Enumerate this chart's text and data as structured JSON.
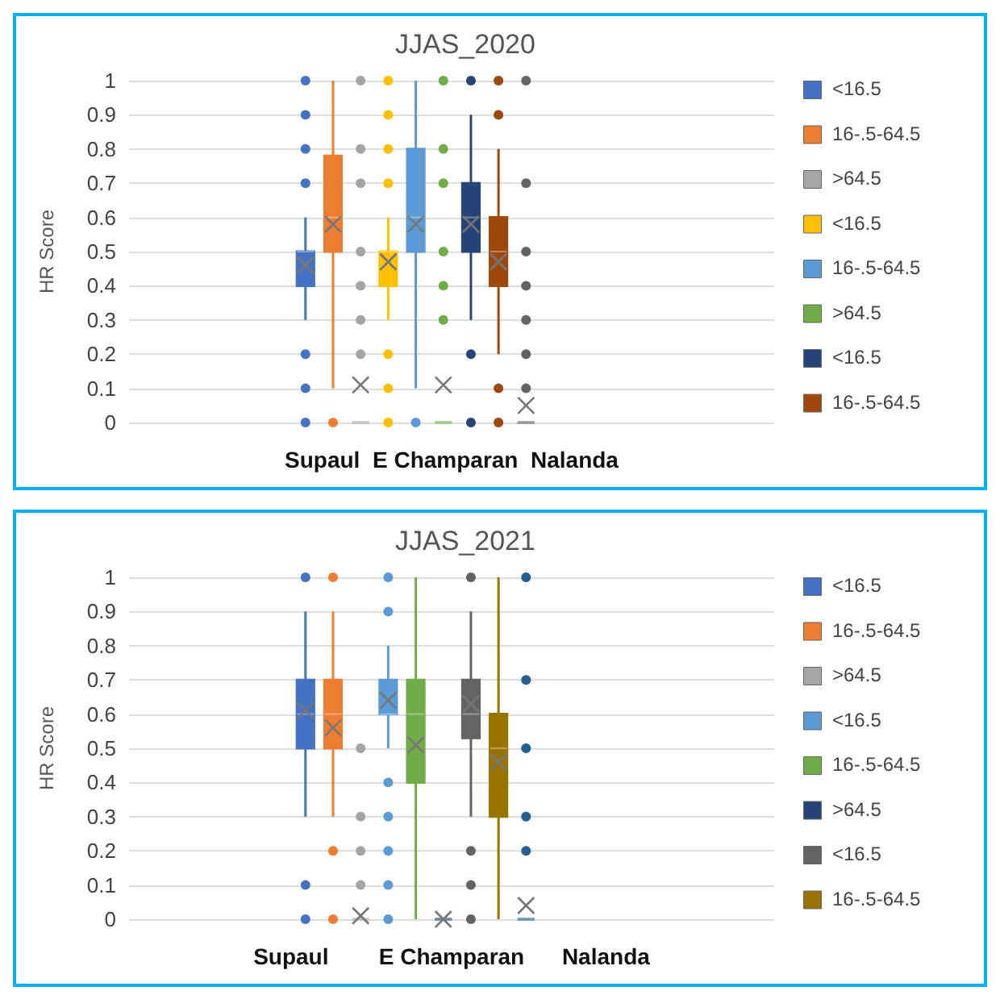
{
  "chart_data": [
    {
      "type": "box",
      "title": "JJAS_2020",
      "ylabel": "HR Score",
      "categories": [
        "Supaul  E Champaran  Nalanda"
      ],
      "ylim": [
        0,
        1
      ],
      "yticks": [
        0,
        0.1,
        0.2,
        0.3,
        0.4,
        0.5,
        0.6,
        0.7,
        0.8,
        0.9,
        1
      ],
      "grid": "y",
      "legend": "right",
      "series": [
        {
          "name": "<16.5",
          "color": "#4472c4",
          "boxes": [
            {
              "low": 0.3,
              "q1": 0.4,
              "median": 0.5,
              "q3": 0.5,
              "high": 0.6,
              "mean": 0.46,
              "outliers": [
                0,
                0.1,
                0.2,
                0.7,
                0.8,
                0.9,
                1
              ]
            }
          ]
        },
        {
          "name": "16-.5-64.5",
          "color": "#ed7d31",
          "boxes": [
            {
              "low": 0.1,
              "q1": 0.5,
              "median": 0.6,
              "q3": 0.78,
              "high": 1,
              "mean": 0.58,
              "outliers": [
                0
              ]
            }
          ]
        },
        {
          "name": ">64.5",
          "color": "#a5a5a5",
          "boxes": [
            {
              "low": 0,
              "q1": 0,
              "median": 0,
              "q3": 0,
              "high": 0,
              "mean": 0.11,
              "outliers": [
                0.2,
                0.3,
                0.4,
                0.5,
                0.7,
                0.8,
                1
              ]
            }
          ]
        },
        {
          "name": "<16.5",
          "color": "#ffc000",
          "boxes": [
            {
              "low": 0.3,
              "q1": 0.4,
              "median": 0.5,
              "q3": 0.5,
              "high": 0.6,
              "mean": 0.47,
              "outliers": [
                0,
                0.1,
                0.2,
                0.7,
                0.8,
                0.9,
                1
              ]
            }
          ]
        },
        {
          "name": "16-.5-64.5",
          "color": "#5b9bd5",
          "boxes": [
            {
              "low": 0.1,
              "q1": 0.5,
              "median": 0.6,
              "q3": 0.8,
              "high": 1,
              "mean": 0.58,
              "outliers": [
                0
              ]
            }
          ]
        },
        {
          "name": ">64.5",
          "color": "#70ad47",
          "boxes": [
            {
              "low": 0,
              "q1": 0,
              "median": 0,
              "q3": 0,
              "high": 0,
              "mean": 0.11,
              "outliers": [
                0.3,
                0.4,
                0.5,
                0.7,
                0.8,
                1
              ]
            }
          ]
        },
        {
          "name": "<16.5",
          "color": "#264478",
          "boxes": [
            {
              "low": 0.3,
              "q1": 0.5,
              "median": 0.6,
              "q3": 0.7,
              "high": 0.9,
              "mean": 0.58,
              "outliers": [
                0,
                0.2,
                1
              ]
            }
          ]
        },
        {
          "name": "16-.5-64.5",
          "color": "#9e480e",
          "boxes": [
            {
              "low": 0.2,
              "q1": 0.4,
              "median": 0.5,
              "q3": 0.6,
              "high": 0.8,
              "mean": 0.47,
              "outliers": [
                0,
                0.1,
                0.9,
                1
              ]
            }
          ]
        },
        {
          "color": "#636363",
          "boxes": [
            {
              "low": 0,
              "q1": 0,
              "median": 0,
              "q3": 0,
              "high": 0,
              "mean": 0.05,
              "outliers": [
                0.1,
                0.2,
                0.3,
                0.4,
                0.5,
                0.7,
                1
              ]
            }
          ]
        }
      ]
    },
    {
      "type": "box",
      "title": "JJAS_2021",
      "ylabel": "HR Score",
      "categories": [
        "Supaul        E Champaran      Nalanda"
      ],
      "ylim": [
        0,
        1
      ],
      "yticks": [
        0,
        0.1,
        0.2,
        0.3,
        0.4,
        0.5,
        0.6,
        0.7,
        0.8,
        0.9,
        1
      ],
      "grid": "y",
      "legend": "right",
      "series": [
        {
          "name": "<16.5",
          "color": "#4472c4",
          "boxes": [
            {
              "low": 0.3,
              "q1": 0.5,
              "median": 0.6,
              "q3": 0.7,
              "high": 0.9,
              "mean": 0.61,
              "outliers": [
                0,
                0.1,
                1
              ]
            }
          ]
        },
        {
          "name": "16-.5-64.5",
          "color": "#ed7d31",
          "boxes": [
            {
              "low": 0.3,
              "q1": 0.5,
              "median": 0.6,
              "q3": 0.7,
              "high": 0.9,
              "mean": 0.56,
              "outliers": [
                0,
                0.2,
                1
              ]
            }
          ]
        },
        {
          "name": ">64.5",
          "color": "#a5a5a5",
          "boxes": [
            {
              "low": 0,
              "q1": 0,
              "median": 0,
              "q3": 0,
              "high": 0,
              "mean": 0.01,
              "outliers": [
                0.1,
                0.2,
                0.3,
                0.5
              ]
            }
          ]
        },
        {
          "name": "<16.5",
          "color": "#5b9bd5",
          "boxes": [
            {
              "low": 0.5,
              "q1": 0.6,
              "median": 0.6,
              "q3": 0.7,
              "high": 0.8,
              "mean": 0.64,
              "outliers": [
                0,
                0.1,
                0.2,
                0.3,
                0.4,
                0.9,
                1
              ]
            }
          ]
        },
        {
          "name": "16-.5-64.5",
          "color": "#70ad47",
          "boxes": [
            {
              "low": 0,
              "q1": 0.4,
              "median": 0.6,
              "q3": 0.7,
              "high": 1,
              "mean": 0.51
            }
          ]
        },
        {
          "name": ">64.5",
          "color": "#264478",
          "boxes": [
            {
              "low": 0,
              "q1": 0,
              "median": 0,
              "q3": 0,
              "high": 0,
              "mean": 0
            }
          ]
        },
        {
          "name": "<16.5",
          "color": "#636363",
          "boxes": [
            {
              "low": 0.3,
              "q1": 0.53,
              "median": 0.6,
              "q3": 0.7,
              "high": 0.9,
              "mean": 0.63,
              "outliers": [
                0,
                0.1,
                0.2,
                1
              ]
            }
          ]
        },
        {
          "name": "16-.5-64.5",
          "color": "#997300",
          "boxes": [
            {
              "low": 0,
              "q1": 0.3,
              "median": 0.5,
              "q3": 0.6,
              "high": 1,
              "mean": 0.46
            }
          ]
        },
        {
          "color": "#255e91",
          "boxes": [
            {
              "low": 0,
              "q1": 0,
              "median": 0,
              "q3": 0,
              "high": 0,
              "mean": 0.04,
              "outliers": [
                0.2,
                0.3,
                0.5,
                0.7,
                1
              ]
            }
          ]
        }
      ]
    }
  ]
}
